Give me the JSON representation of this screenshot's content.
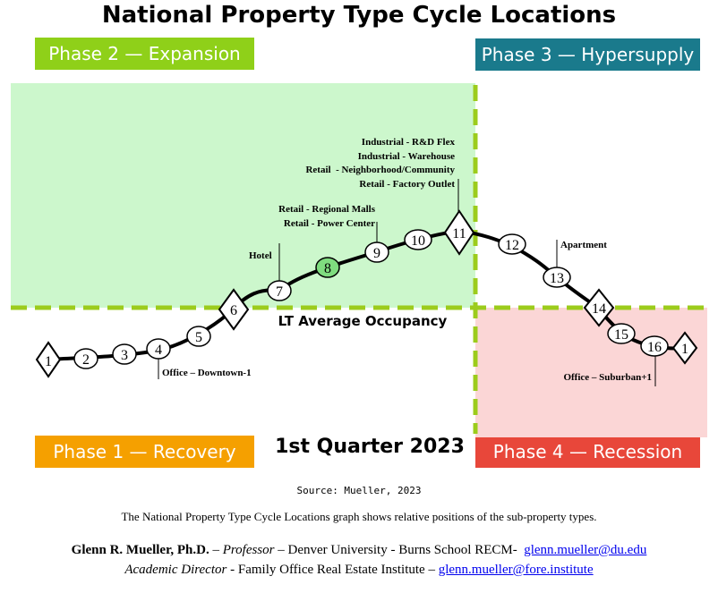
{
  "title": "National Property Type Cycle Locations",
  "phases": {
    "p1": "Phase 1 — Recovery",
    "p2": "Phase 2 — Expansion",
    "p3": "Phase 3 — Hypersupply",
    "p4": "Phase 4 — Recession"
  },
  "colors": {
    "p1": "#f5a000",
    "p2": "#8fd019",
    "p3": "#1a7a8c",
    "p4": "#e8473a",
    "expansion_fill": "#ccf7cc",
    "recession_fill": "#fbd6d6",
    "dash": "#9ccc1c",
    "highlight_node": "#7fdc7f"
  },
  "occupancy_label": "LT Average Occupancy",
  "quarter": "1st Quarter 2023",
  "nodes": [
    "1",
    "2",
    "3",
    "4",
    "5",
    "6",
    "7",
    "8",
    "9",
    "10",
    "11",
    "12",
    "13",
    "14",
    "15",
    "16",
    "1"
  ],
  "labels": {
    "office_downtown": "Office – Downtown-1",
    "hotel": "Hotel",
    "retail_regional": "Retail - Regional Malls",
    "retail_power": "Retail - Power Center",
    "ind_rd": "Industrial - R&D Flex",
    "ind_warehouse": "Industrial - Warehouse",
    "retail_neighborhood": "Retail  - Neighborhood/Community",
    "retail_factory": "Retail - Factory Outlet",
    "apartment": "Apartment",
    "office_suburban": "Office – Suburban+1"
  },
  "source": "Source: Mueller, 2023",
  "caption": "The National Property Type Cycle Locations graph shows relative positions of the sub-property types.",
  "credit": {
    "name": "Glenn R. Mueller, Ph.D.",
    "sep1": " – ",
    "role1": "Professor",
    "org1": " – Denver University - Burns School RECM-  ",
    "email1": "glenn.mueller@du.edu",
    "role2": "Academic Director",
    "org2": " - Family Office Real Estate Institute – ",
    "email2": "glenn.mueller@fore.institute"
  }
}
